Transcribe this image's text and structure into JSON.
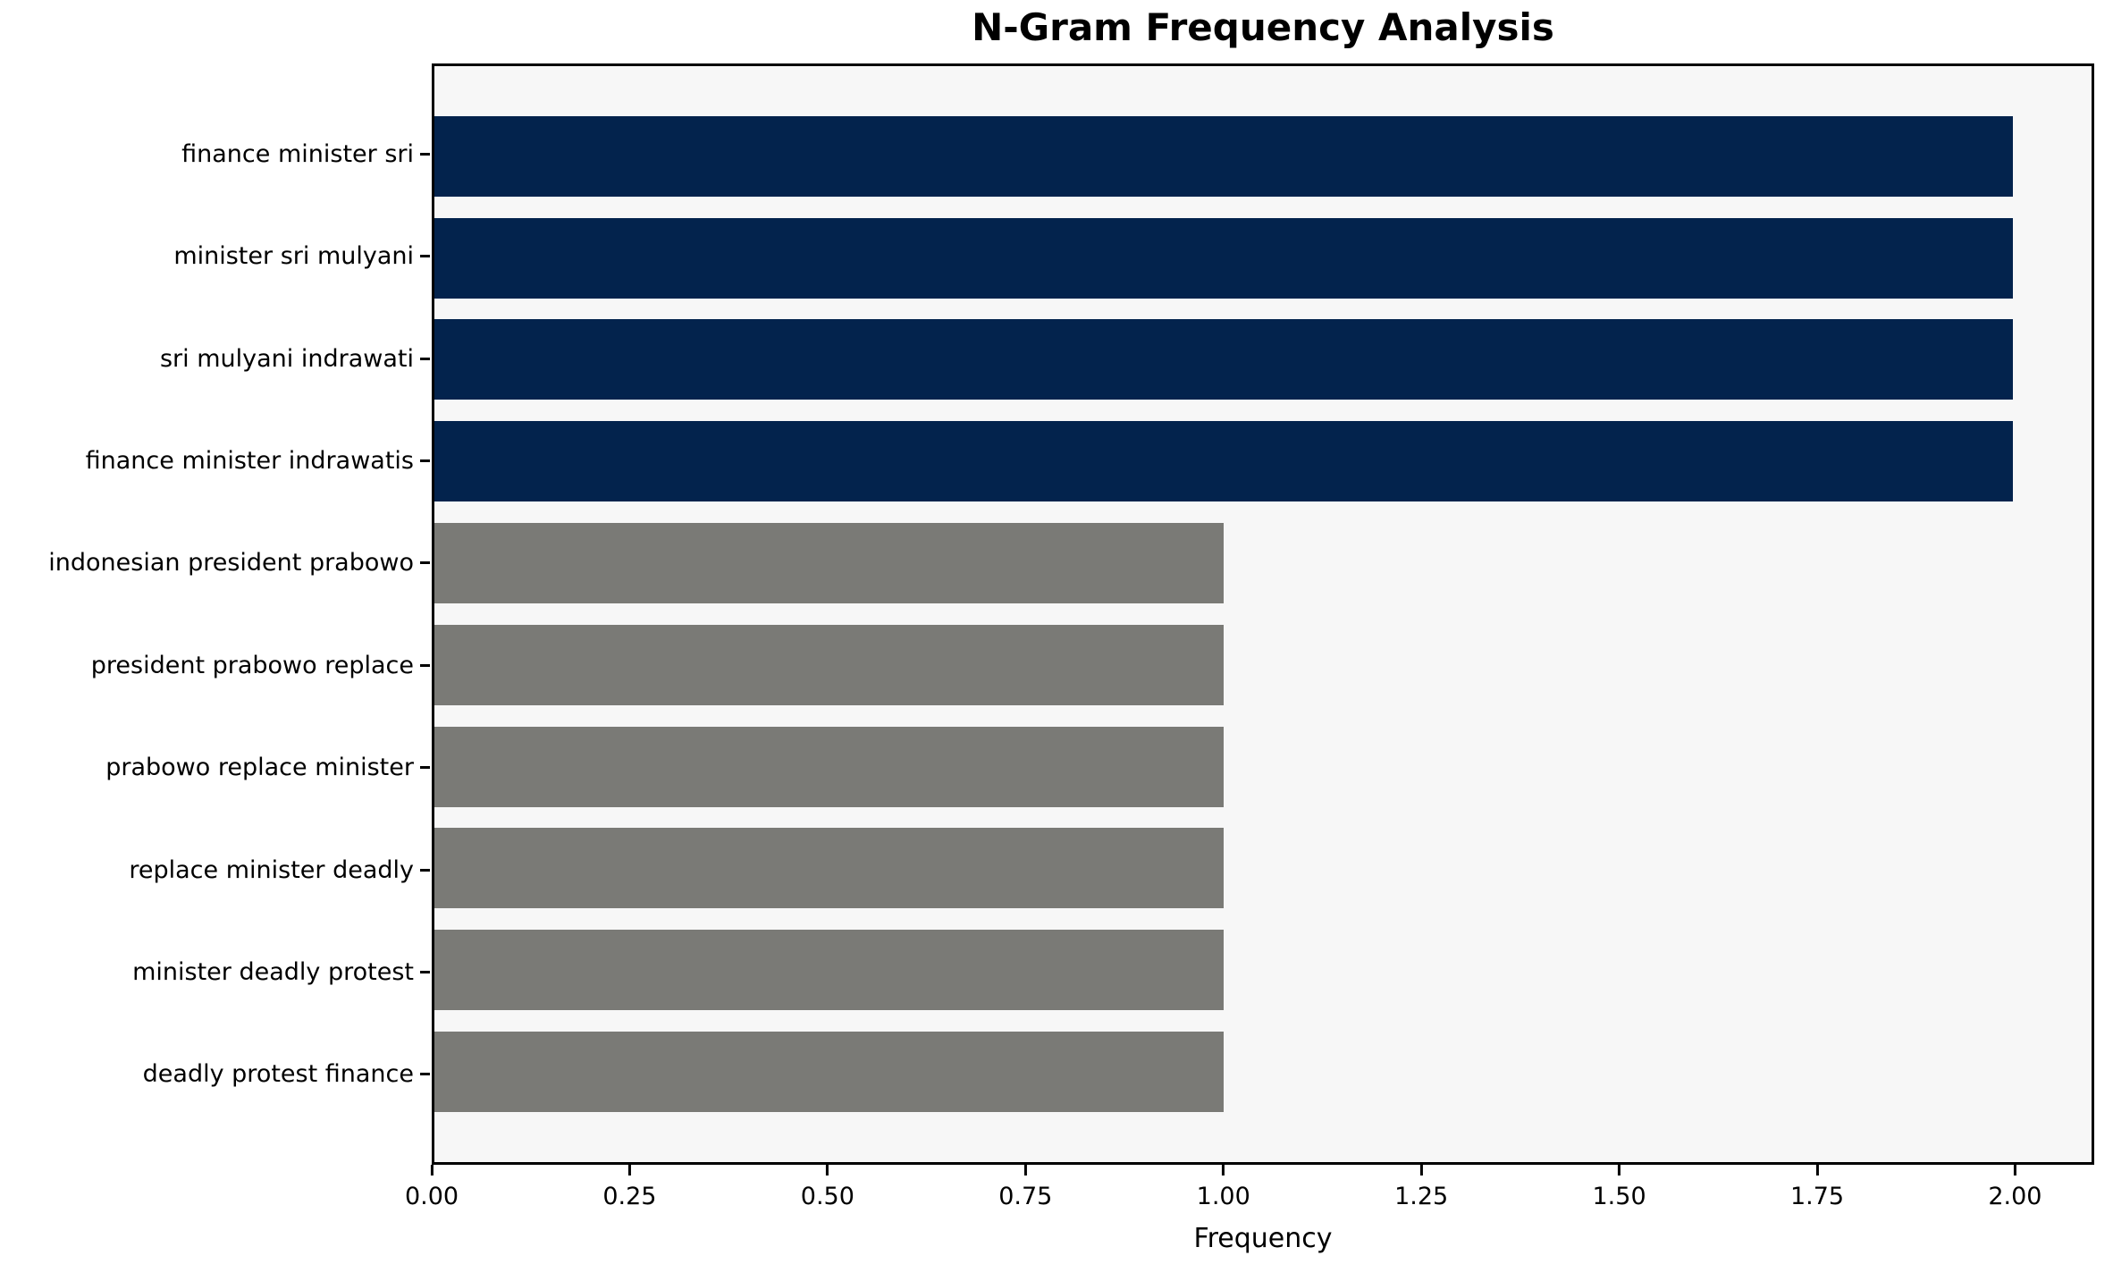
{
  "chart_data": {
    "type": "bar",
    "orientation": "horizontal",
    "title": "N-Gram Frequency Analysis",
    "xlabel": "Frequency",
    "ylabel": "",
    "categories": [
      "finance minister sri",
      "minister sri mulyani",
      "sri mulyani indrawati",
      "finance minister indrawatis",
      "indonesian president prabowo",
      "president prabowo replace",
      "prabowo replace minister",
      "replace minister deadly",
      "minister deadly protest",
      "deadly protest finance"
    ],
    "values": [
      2,
      2,
      2,
      2,
      1,
      1,
      1,
      1,
      1,
      1
    ],
    "bar_colors": [
      "#03234d",
      "#03234d",
      "#03234d",
      "#03234d",
      "#7a7a76",
      "#7a7a76",
      "#7a7a76",
      "#7a7a76",
      "#7a7a76",
      "#7a7a76"
    ],
    "xlim": [
      0,
      2.1
    ],
    "xticks": [
      {
        "value": 0.0,
        "label": "0.00"
      },
      {
        "value": 0.25,
        "label": "0.25"
      },
      {
        "value": 0.5,
        "label": "0.50"
      },
      {
        "value": 0.75,
        "label": "0.75"
      },
      {
        "value": 1.0,
        "label": "1.00"
      },
      {
        "value": 1.25,
        "label": "1.25"
      },
      {
        "value": 1.5,
        "label": "1.50"
      },
      {
        "value": 1.75,
        "label": "1.75"
      },
      {
        "value": 2.0,
        "label": "2.00"
      }
    ],
    "grid": false,
    "legend_position": "none",
    "colors": {
      "highlight_bar": "#03234d",
      "default_bar": "#7a7a76",
      "plot_background": "#f7f7f7",
      "figure_background": "#ffffff",
      "spine": "#000000",
      "text": "#000000"
    }
  }
}
